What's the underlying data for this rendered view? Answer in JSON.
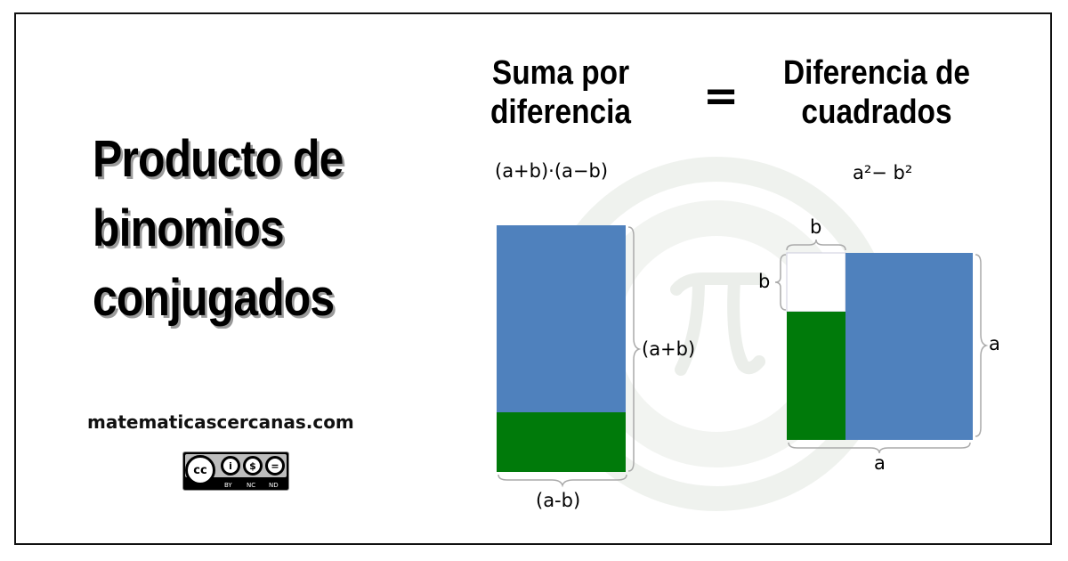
{
  "title": {
    "lines": [
      "Producto de",
      "binomios",
      "conjugados"
    ]
  },
  "website": "matematicascercanas.com",
  "license": {
    "badge": "cc",
    "labels": [
      "BY",
      "NC",
      "ND"
    ]
  },
  "left_heading": {
    "lines": [
      "Suma por",
      "diferencia"
    ]
  },
  "equals": "=",
  "right_heading": {
    "lines": [
      "Diferencia de",
      "cuadrados"
    ]
  },
  "left_expression": "(a+b)·(a−b)",
  "right_expression": "a²− b²",
  "left_figure": {
    "height_label": "(a+b)",
    "width_label": "(a-b)"
  },
  "right_figure": {
    "small_width_label": "b",
    "small_height_label": "b",
    "height_label": "a",
    "width_label": "a"
  },
  "watermark": "pi-logo",
  "colors": {
    "blue": "#4f81bd",
    "green": "#007a0a",
    "watermark": "#eef2ee"
  }
}
